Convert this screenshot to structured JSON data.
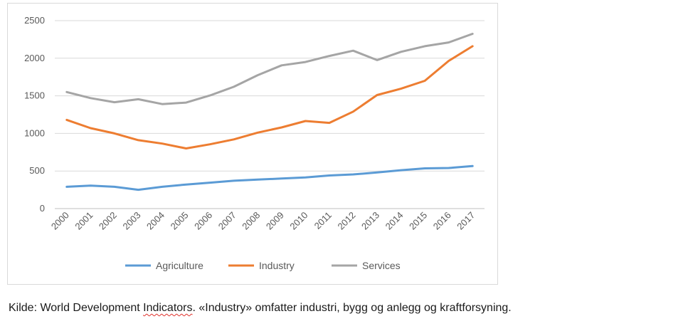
{
  "chart_data": {
    "type": "line",
    "title": "",
    "xlabel": "",
    "ylabel": "",
    "ylim": [
      0,
      2500
    ],
    "yticks": [
      0,
      500,
      1000,
      1500,
      2000,
      2500
    ],
    "grid": true,
    "legend_position": "bottom",
    "categories": [
      "2000",
      "2001",
      "2002",
      "2003",
      "2004",
      "2005",
      "2006",
      "2007",
      "2008",
      "2009",
      "2010",
      "2011",
      "2012",
      "2013",
      "2014",
      "2015",
      "2016",
      "2017"
    ],
    "series": [
      {
        "name": "Agriculture",
        "color": "#5b9bd5",
        "values": [
          290,
          305,
          290,
          250,
          290,
          320,
          345,
          370,
          385,
          400,
          415,
          440,
          455,
          480,
          510,
          535,
          540,
          565
        ]
      },
      {
        "name": "Industry",
        "color": "#ed7d31",
        "values": [
          1180,
          1070,
          1000,
          910,
          865,
          800,
          855,
          920,
          1010,
          1080,
          1165,
          1140,
          1290,
          1510,
          1595,
          1700,
          1965,
          2160
        ]
      },
      {
        "name": "Services",
        "color": "#a5a5a5",
        "values": [
          1550,
          1470,
          1415,
          1455,
          1390,
          1410,
          1505,
          1620,
          1775,
          1905,
          1950,
          2030,
          2100,
          1975,
          2085,
          2160,
          2210,
          2325
        ]
      }
    ]
  },
  "caption": {
    "prefix": "Kilde: World Development ",
    "misspelled": "Indicators",
    "suffix": ". «Industry» omfatter industri, bygg og anlegg og kraftforsyning."
  }
}
